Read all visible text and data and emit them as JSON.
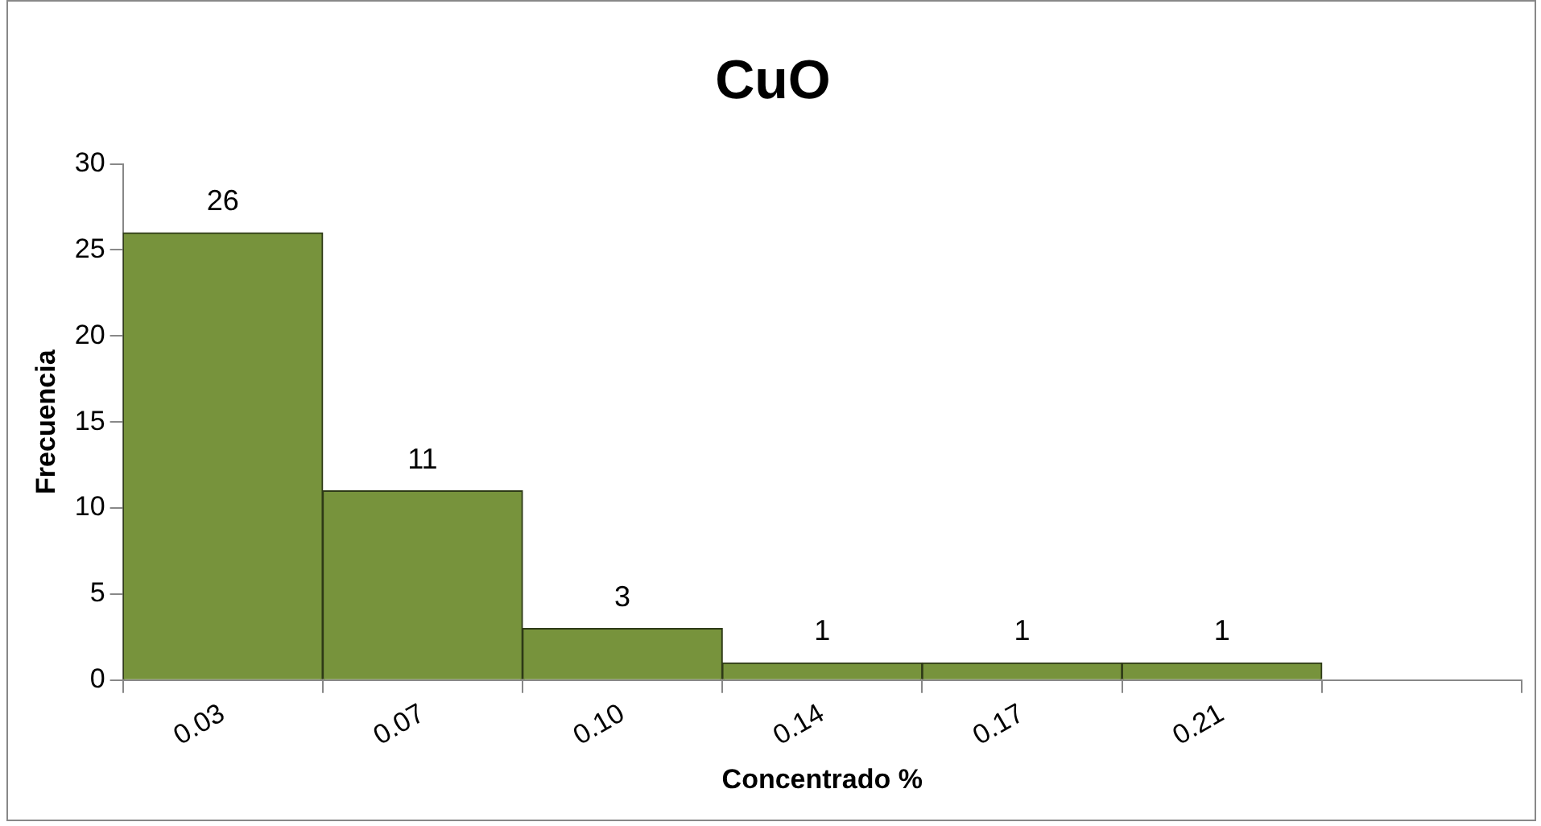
{
  "chart_data": {
    "type": "bar",
    "title": "CuO",
    "xlabel": "Concentrado %",
    "ylabel": "Frecuencia",
    "categories": [
      "0.03",
      "0.07",
      "0.10",
      "0.14",
      "0.17",
      "0.21",
      null
    ],
    "values": [
      26,
      11,
      3,
      1,
      1,
      1,
      null
    ],
    "color": "#77933c",
    "ylim": [
      0,
      30
    ],
    "yticks": [
      0,
      5,
      10,
      15,
      20,
      25,
      30
    ],
    "grid": false,
    "legend": false,
    "data_labels": true
  }
}
